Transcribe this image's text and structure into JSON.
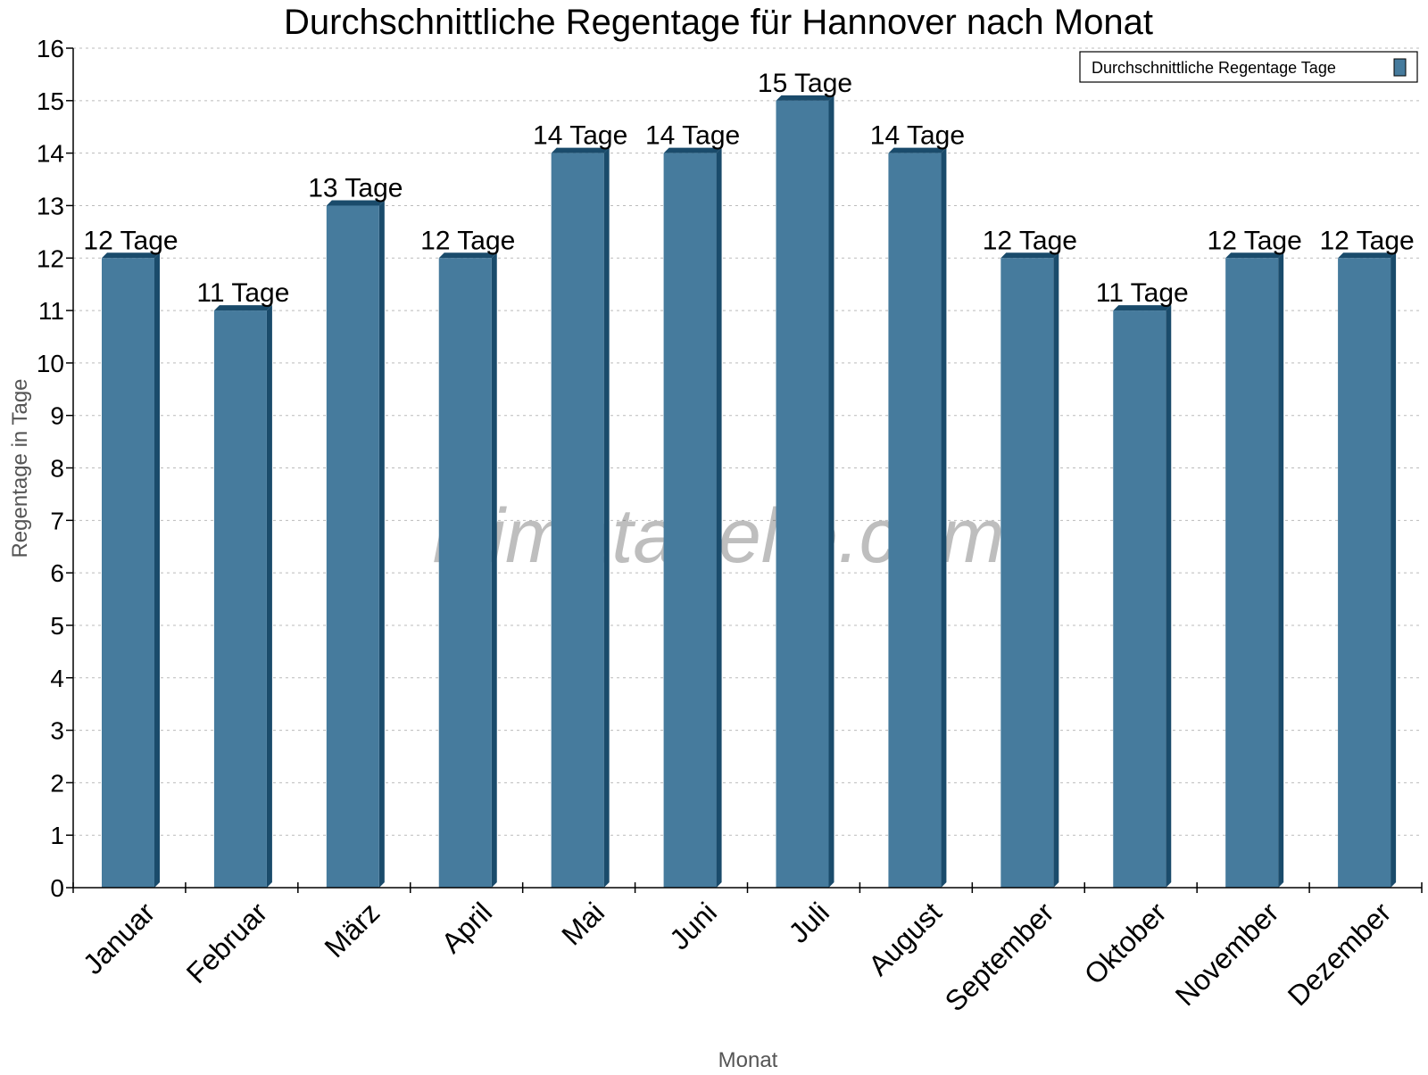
{
  "chart_data": {
    "type": "bar",
    "title": "Durchschnittliche Regentage für Hannover nach Monat",
    "xlabel": "Monat",
    "ylabel": "Regentage in Tage",
    "ylim": [
      0,
      16
    ],
    "yticks": [
      0,
      1,
      2,
      3,
      4,
      5,
      6,
      7,
      8,
      9,
      10,
      11,
      12,
      13,
      14,
      15,
      16
    ],
    "grid": true,
    "legend_placement": "top-right",
    "categories": [
      "Januar",
      "Februar",
      "März",
      "April",
      "Mai",
      "Juni",
      "Juli",
      "August",
      "September",
      "Oktober",
      "November",
      "Dezember"
    ],
    "series": [
      {
        "name": "Durchschnittliche Regentage Tage",
        "values": [
          12,
          11,
          13,
          12,
          14,
          14,
          15,
          14,
          12,
          11,
          12,
          12
        ],
        "data_labels": [
          "12 Tage",
          "11 Tage",
          "13 Tage",
          "12 Tage",
          "14 Tage",
          "14 Tage",
          "15 Tage",
          "14 Tage",
          "12 Tage",
          "11 Tage",
          "12 Tage",
          "12 Tage"
        ],
        "color": "#467b9d",
        "side_color": "#1a4b6b"
      }
    ],
    "watermark": "klimatabelle.com"
  }
}
